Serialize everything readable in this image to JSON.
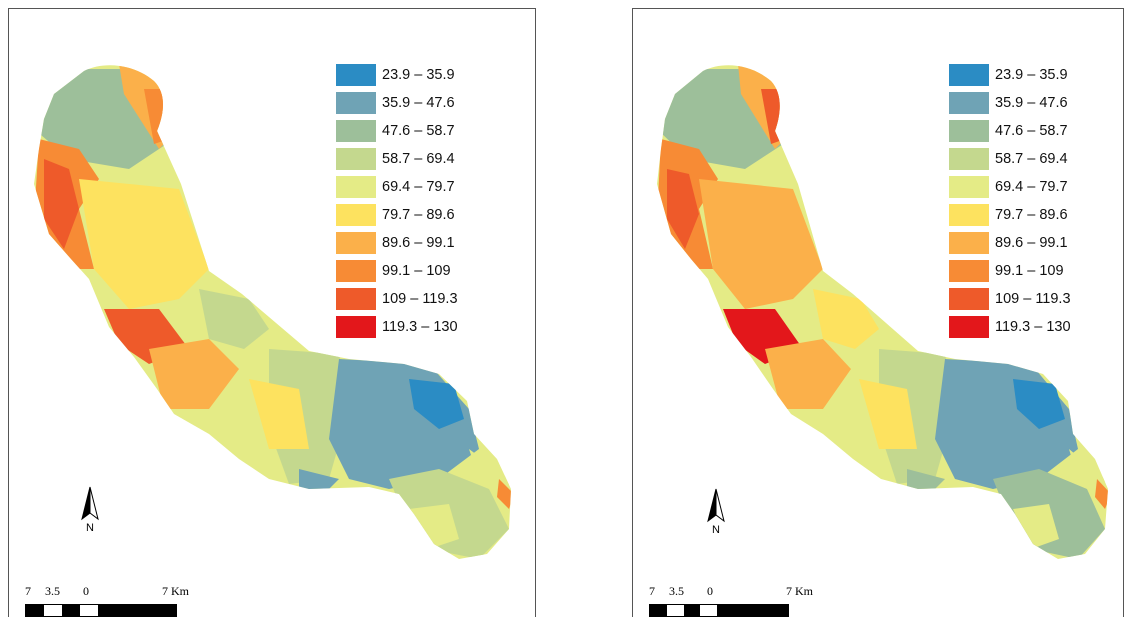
{
  "legend": {
    "classes": [
      {
        "label": "23.9 – 35.9",
        "color": "#2b8cc4"
      },
      {
        "label": "35.9 – 47.6",
        "color": "#6fa3b5"
      },
      {
        "label": "47.6 – 58.7",
        "color": "#9dbf9a"
      },
      {
        "label": "58.7 – 69.4",
        "color": "#c4d88e"
      },
      {
        "label": "69.4 – 79.7",
        "color": "#e4eb86"
      },
      {
        "label": "79.7 – 89.6",
        "color": "#fde25f"
      },
      {
        "label": "89.6 – 99.1",
        "color": "#fbb04a"
      },
      {
        "label": "99.1 – 109",
        "color": "#f78b35"
      },
      {
        "label": "109 – 119.3",
        "color": "#ee5a2a"
      },
      {
        "label": "119.3 – 130",
        "color": "#e3171b"
      }
    ]
  },
  "north_arrow": {
    "label": "N"
  },
  "scale_bar": {
    "ticks": [
      "7",
      "3.5",
      "0",
      "7 Km"
    ]
  },
  "maps": [
    {
      "id": "left"
    },
    {
      "id": "right"
    }
  ]
}
